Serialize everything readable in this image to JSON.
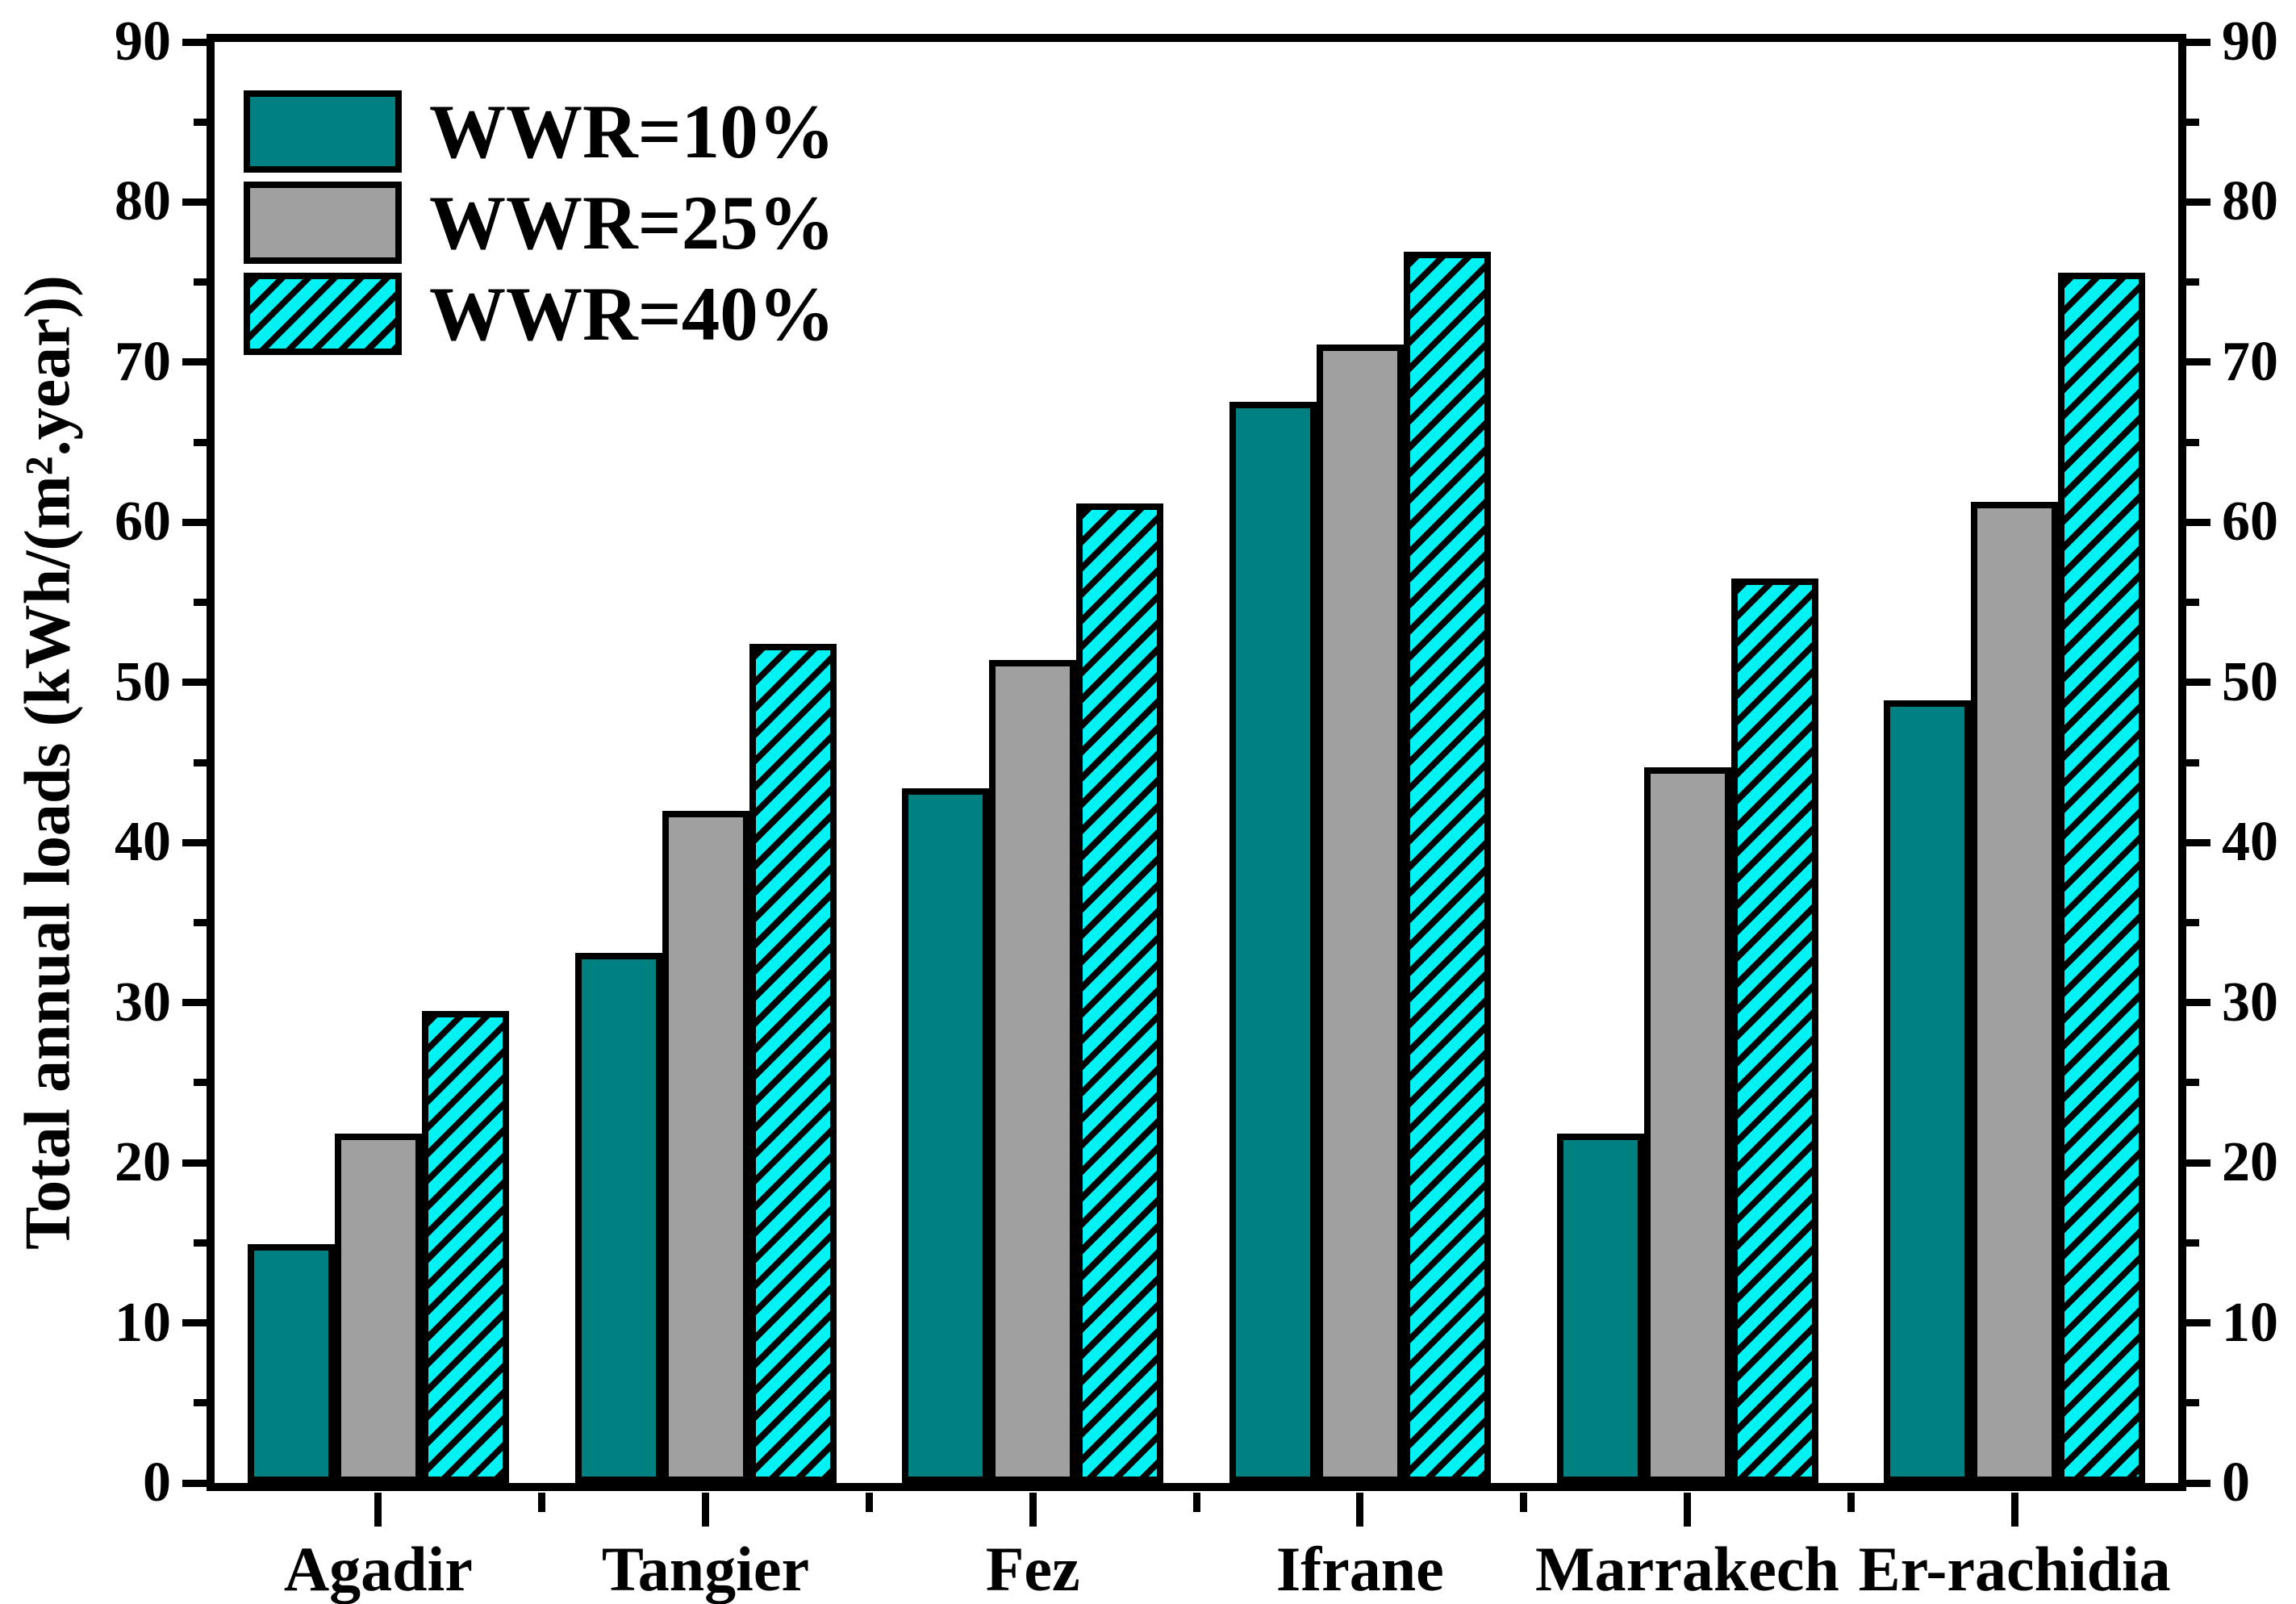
{
  "chart_data": {
    "type": "bar",
    "title": "",
    "categories": [
      "Agadir",
      "Tangier",
      "Fez",
      "Ifrane",
      "Marrakech",
      "Er-rachidia"
    ],
    "series": [
      {
        "name": "WWR=10%",
        "color": "#008080",
        "hatch": false,
        "values": [
          14.9,
          33.1,
          43.4,
          67.5,
          21.8,
          48.9
        ]
      },
      {
        "name": "WWR=25%",
        "color": "#A0A0A0",
        "hatch": false,
        "values": [
          21.8,
          42.0,
          51.4,
          71.1,
          44.7,
          61.3
        ]
      },
      {
        "name": "WWR=40%",
        "color": "#00F2F2",
        "hatch": true,
        "hatch_color": "#000000",
        "values": [
          29.5,
          52.4,
          61.2,
          76.9,
          56.5,
          75.6
        ]
      }
    ],
    "xlabel": "",
    "ylabel": "Total annual loads (kWh/(m².year))",
    "ylim": [
      0,
      90
    ],
    "y_major_step": 10,
    "y_minor_step": 5,
    "y_axis_right_mirror": true,
    "grid": false,
    "legend_position": "top-left",
    "frame": "full-box",
    "bar_outline_color": "#000000"
  }
}
